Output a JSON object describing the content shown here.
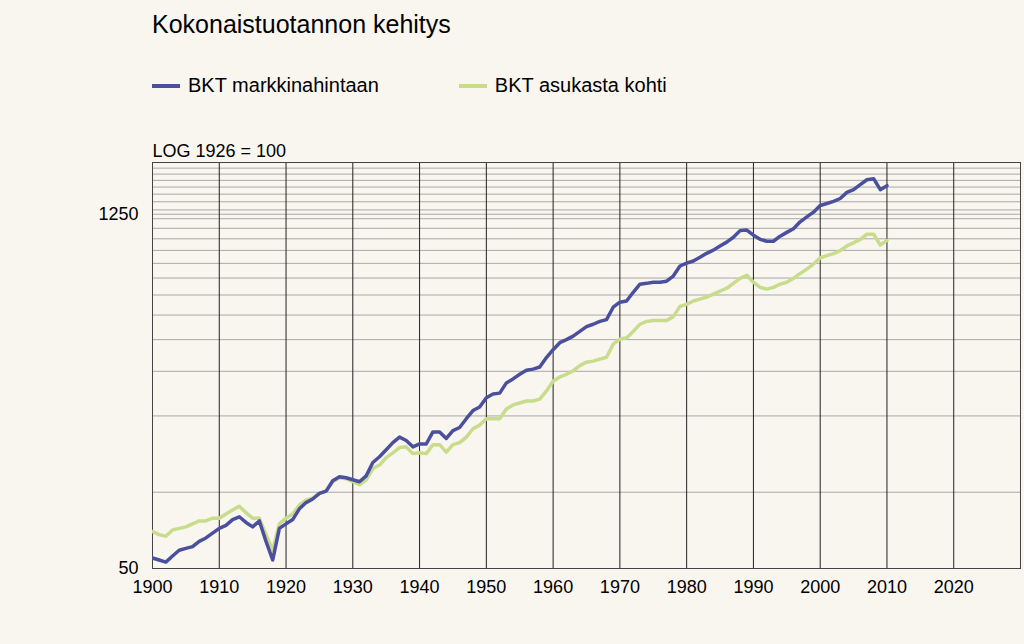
{
  "chart_data": {
    "type": "line",
    "title": "Kokonaistuotannon kehitys",
    "y_label": "LOG 1926 = 100",
    "log": "y",
    "grid": true,
    "x": [
      1900,
      1901,
      1902,
      1903,
      1904,
      1905,
      1906,
      1907,
      1908,
      1909,
      1910,
      1911,
      1912,
      1913,
      1914,
      1915,
      1916,
      1917,
      1918,
      1919,
      1920,
      1921,
      1922,
      1923,
      1924,
      1925,
      1926,
      1927,
      1928,
      1929,
      1930,
      1931,
      1932,
      1933,
      1934,
      1935,
      1936,
      1937,
      1938,
      1939,
      1940,
      1941,
      1942,
      1943,
      1944,
      1945,
      1946,
      1947,
      1948,
      1949,
      1950,
      1951,
      1952,
      1953,
      1954,
      1955,
      1956,
      1957,
      1958,
      1959,
      1960,
      1961,
      1962,
      1963,
      1964,
      1965,
      1966,
      1967,
      1968,
      1969,
      1970,
      1971,
      1972,
      1973,
      1974,
      1975,
      1976,
      1977,
      1978,
      1979,
      1980,
      1981,
      1982,
      1983,
      1984,
      1985,
      1986,
      1987,
      1988,
      1989,
      1990,
      1991,
      1992,
      1993,
      1994,
      1995,
      1996,
      1997,
      1998,
      1999,
      2000,
      2001,
      2002,
      2003,
      2004,
      2005,
      2006,
      2007,
      2008,
      2009,
      2010
    ],
    "series": [
      {
        "name": "BKT asukasta kohti",
        "color": "#c8dc8c",
        "values": [
          70,
          68,
          67,
          71,
          72,
          73,
          75,
          77,
          77,
          79,
          79,
          82,
          85,
          88,
          83,
          79,
          79,
          68,
          59,
          75,
          79,
          82,
          89,
          93,
          95,
          99,
          101,
          110,
          114,
          113,
          110,
          107,
          112,
          124,
          128,
          137,
          143,
          150,
          151,
          142,
          143,
          142,
          154,
          154,
          144,
          154,
          157,
          165,
          178,
          184,
          195,
          195,
          195,
          213,
          221,
          225,
          229,
          229,
          233,
          251,
          274,
          285,
          292,
          301,
          316,
          326,
          329,
          335,
          341,
          384,
          402,
          406,
          431,
          460,
          472,
          476,
          476,
          476,
          493,
          541,
          551,
          568,
          578,
          589,
          605,
          621,
          638,
          667,
          698,
          718,
          674,
          643,
          633,
          643,
          662,
          674,
          698,
          730,
          759,
          795,
          842,
          858,
          874,
          898,
          937,
          964,
          995,
          1042,
          1042,
          945,
          986
        ]
      },
      {
        "name": "BKT markkinahintaan",
        "color": "#4b509e",
        "values": [
          55,
          54,
          53,
          56,
          59,
          60,
          61,
          64,
          66,
          69,
          72,
          74,
          78,
          80,
          76,
          73,
          77,
          64,
          54,
          72,
          75,
          78,
          86,
          91,
          94,
          99,
          101,
          111,
          115,
          114,
          112,
          110,
          116,
          131,
          138,
          147,
          157,
          165,
          160,
          151,
          155,
          155,
          173,
          173,
          163,
          175,
          180,
          195,
          210,
          217,
          236,
          244,
          246,
          270,
          280,
          292,
          303,
          306,
          312,
          340,
          365,
          389,
          400,
          413,
          431,
          450,
          460,
          472,
          480,
          537,
          562,
          568,
          615,
          662,
          667,
          674,
          674,
          680,
          713,
          781,
          801,
          817,
          845,
          876,
          902,
          937,
          970,
          1014,
          1077,
          1083,
          1033,
          995,
          978,
          978,
          1024,
          1060,
          1096,
          1167,
          1220,
          1274,
          1353,
          1378,
          1404,
          1442,
          1524,
          1563,
          1636,
          1710,
          1727,
          1563,
          1620
        ]
      }
    ],
    "legend_order": [
      "BKT markkinahintaan",
      "BKT asukasta kohti"
    ],
    "xlim": [
      1900,
      2030
    ],
    "xticks": [
      1900,
      1910,
      1920,
      1930,
      1940,
      1950,
      1960,
      1970,
      1980,
      1990,
      2000,
      2010,
      2020
    ],
    "ylim": [
      50,
      2000
    ],
    "yticks": [
      50,
      {
        "value": 100,
        "label": null
      },
      {
        "value": 200,
        "label": null
      },
      {
        "value": 300,
        "label": null
      },
      {
        "value": 400,
        "label": null
      },
      {
        "value": 500,
        "label": null
      },
      {
        "value": 600,
        "label": null
      },
      {
        "value": 700,
        "label": null
      },
      {
        "value": 800,
        "label": null
      },
      {
        "value": 900,
        "label": null
      },
      {
        "value": 1000,
        "label": null
      },
      {
        "value": 1100,
        "label": null
      },
      {
        "value": 1200,
        "label": null
      },
      1250,
      {
        "value": 1300,
        "label": null
      },
      {
        "value": 1400,
        "label": null
      },
      {
        "value": 1500,
        "label": null
      },
      {
        "value": 1600,
        "label": null
      },
      {
        "value": 1700,
        "label": null
      },
      {
        "value": 1800,
        "label": null
      },
      {
        "value": 1900,
        "label": null
      }
    ]
  }
}
